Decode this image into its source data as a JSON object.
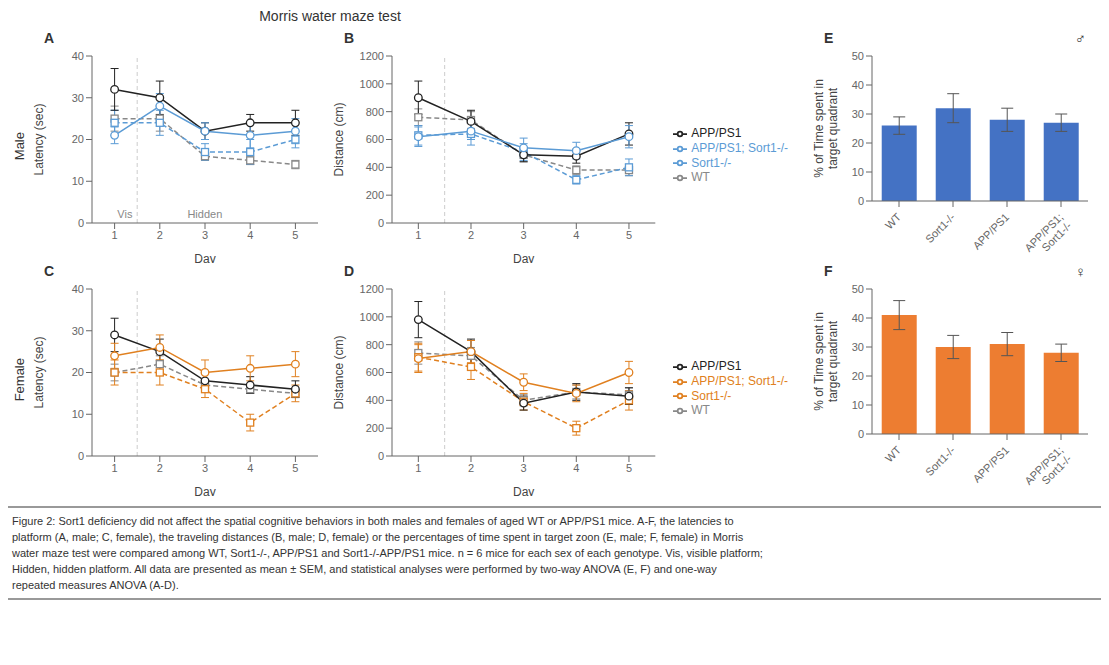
{
  "title": "Morris water maze test",
  "annotations": [
    "Male",
    "Female"
  ],
  "caption": [
    "Figure 2: Sort1 deficiency did not affect the spatial cognitive behaviors in both males and females of aged WT or APP/PS1 mice. A-F, the latencies to",
    "platform (A, male; C, female), the traveling distances (B, male; D, female) or the percentages of time spent in target zoon (E, male; F, female) in Morris",
    "water maze test were compared among WT, Sort1-/-, APP/PS1 and Sort1-/-APP/PS1 mice. n = 6 mice for each sex of each genotype. Vis, visible platform;",
    "Hidden, hidden platform. All data are presented as mean ± SEM, and statistical analyses were performed by two-way ANOVA (E, F) and one-way",
    "repeated measures ANOVA (A-D)."
  ],
  "chart_data": [
    {
      "type": "line",
      "title": "A",
      "xlabel": "Day",
      "ylabel": "Latency (sec)",
      "x": [
        1,
        2,
        3,
        4,
        5
      ],
      "xlim": [
        0.5,
        5.5
      ],
      "xticks": [
        1,
        2,
        3,
        4,
        5
      ],
      "ylim": [
        0,
        40
      ],
      "yticks": [
        0,
        10,
        20,
        30,
        40
      ],
      "vlines": [
        1.5
      ],
      "annotations": [
        {
          "text": "Vis",
          "x": 0.95
        },
        {
          "text": "Hidden",
          "x": 2.5
        }
      ],
      "series": [
        {
          "name": "WT",
          "color": "#888888",
          "marker": "square",
          "line_style": "dashed",
          "values": [
            25,
            25,
            16,
            15,
            14
          ],
          "errors": [
            3,
            3,
            1,
            1,
            1
          ]
        },
        {
          "name": "Sort1-/-",
          "color": "#5b9bd5",
          "marker": "square",
          "line_style": "dashed",
          "values": [
            24,
            24,
            17,
            17,
            20
          ],
          "errors": [
            3,
            3,
            2,
            3,
            2
          ]
        },
        {
          "name": "APP/PS1",
          "color": "#222222",
          "marker": "circle",
          "line_style": "solid",
          "values": [
            32,
            30,
            22,
            24,
            24
          ],
          "errors": [
            5,
            4,
            2,
            2,
            3
          ]
        },
        {
          "name": "APP/PS1; Sort1-/-",
          "color": "#5b9bd5",
          "marker": "circle",
          "line_style": "solid",
          "values": [
            21,
            28,
            22,
            21,
            22
          ],
          "errors": [
            2,
            3,
            2,
            3,
            3
          ]
        }
      ]
    },
    {
      "type": "line",
      "title": "B",
      "xlabel": "Day",
      "ylabel": "Distance (cm)",
      "x": [
        1,
        2,
        3,
        4,
        5
      ],
      "xlim": [
        0.5,
        5.5
      ],
      "xticks": [
        1,
        2,
        3,
        4,
        5
      ],
      "ylim": [
        0,
        1200
      ],
      "yticks": [
        0,
        200,
        400,
        600,
        800,
        1000,
        1200
      ],
      "vlines": [
        1.5
      ],
      "legend": "right",
      "series": [
        {
          "name": "WT",
          "color": "#888888",
          "marker": "square",
          "line_style": "dashed",
          "values": [
            760,
            740,
            490,
            380,
            380
          ],
          "errors": [
            60,
            60,
            50,
            30,
            40
          ]
        },
        {
          "name": "Sort1-/-",
          "color": "#5b9bd5",
          "marker": "square",
          "line_style": "dashed",
          "values": [
            630,
            640,
            510,
            310,
            400
          ],
          "errors": [
            70,
            80,
            60,
            30,
            60
          ]
        },
        {
          "name": "APP/PS1",
          "color": "#222222",
          "marker": "circle",
          "line_style": "solid",
          "values": [
            900,
            730,
            490,
            480,
            640
          ],
          "errors": [
            120,
            80,
            50,
            50,
            80
          ]
        },
        {
          "name": "APP/PS1; Sort1-/-",
          "color": "#5b9bd5",
          "marker": "circle",
          "line_style": "solid",
          "values": [
            620,
            660,
            540,
            520,
            620
          ],
          "errors": [
            70,
            60,
            70,
            60,
            80
          ]
        }
      ]
    },
    {
      "type": "line",
      "title": "C",
      "xlabel": "Day",
      "ylabel": "Latency (sec)",
      "x": [
        1,
        2,
        3,
        4,
        5
      ],
      "xlim": [
        0.5,
        5.5
      ],
      "xticks": [
        1,
        2,
        3,
        4,
        5
      ],
      "ylim": [
        0,
        40
      ],
      "yticks": [
        0,
        10,
        20,
        30,
        40
      ],
      "vlines": [
        1.5
      ],
      "series": [
        {
          "name": "WT",
          "color": "#888888",
          "marker": "square",
          "line_style": "dashed",
          "values": [
            20,
            22,
            17,
            16,
            15
          ],
          "errors": [
            2,
            2,
            1,
            1,
            1
          ]
        },
        {
          "name": "Sort1-/-",
          "color": "#e08020",
          "marker": "square",
          "line_style": "dashed",
          "values": [
            20,
            20,
            16,
            8,
            15
          ],
          "errors": [
            3,
            3,
            2,
            2,
            2
          ]
        },
        {
          "name": "APP/PS1",
          "color": "#222222",
          "marker": "circle",
          "line_style": "solid",
          "values": [
            29,
            25,
            18,
            17,
            16
          ],
          "errors": [
            4,
            3,
            2,
            2,
            2
          ]
        },
        {
          "name": "APP/PS1; Sort1-/-",
          "color": "#e08020",
          "marker": "circle",
          "line_style": "solid",
          "values": [
            24,
            26,
            20,
            21,
            22
          ],
          "errors": [
            3,
            3,
            3,
            3,
            3
          ]
        }
      ]
    },
    {
      "type": "line",
      "title": "D",
      "xlabel": "Day",
      "ylabel": "Distance (cm)",
      "x": [
        1,
        2,
        3,
        4,
        5
      ],
      "xlim": [
        0.5,
        5.5
      ],
      "xticks": [
        1,
        2,
        3,
        4,
        5
      ],
      "ylim": [
        0,
        1200
      ],
      "yticks": [
        0,
        200,
        400,
        600,
        800,
        1000,
        1200
      ],
      "vlines": [
        1.5
      ],
      "legend": "right",
      "series": [
        {
          "name": "WT",
          "color": "#888888",
          "marker": "square",
          "line_style": "dashed",
          "values": [
            740,
            720,
            400,
            460,
            440
          ],
          "errors": [
            80,
            60,
            40,
            50,
            50
          ]
        },
        {
          "name": "Sort1-/-",
          "color": "#e08020",
          "marker": "square",
          "line_style": "dashed",
          "values": [
            710,
            640,
            390,
            200,
            400
          ],
          "errors": [
            100,
            90,
            60,
            50,
            70
          ]
        },
        {
          "name": "APP/PS1",
          "color": "#222222",
          "marker": "circle",
          "line_style": "solid",
          "values": [
            980,
            750,
            380,
            460,
            430
          ],
          "errors": [
            130,
            90,
            50,
            60,
            60
          ]
        },
        {
          "name": "APP/PS1; Sort1-/-",
          "color": "#e08020",
          "marker": "circle",
          "line_style": "solid",
          "values": [
            700,
            750,
            530,
            450,
            600
          ],
          "errors": [
            100,
            80,
            60,
            60,
            80
          ]
        }
      ]
    },
    {
      "type": "bar",
      "title": "E",
      "ylabel": "% of Time spent in\ntarget quadrant",
      "categories": [
        "WT",
        "Sort1-/-",
        "APP/PS1",
        "APP/PS1;\nSort1-/-"
      ],
      "values": [
        26,
        32,
        28,
        27
      ],
      "errors": [
        3,
        5,
        4,
        3
      ],
      "color": "#4472c4",
      "ylim": [
        0,
        50
      ],
      "yticks": [
        0,
        10,
        20,
        30,
        40,
        50
      ],
      "annotations": [
        {
          "text": "♂"
        }
      ]
    },
    {
      "type": "bar",
      "title": "F",
      "ylabel": "% of Time spent in\ntarget quadrant",
      "categories": [
        "WT",
        "Sort1-/-",
        "APP/PS1",
        "APP/PS1;\nSort1-/-"
      ],
      "values": [
        41,
        30,
        31,
        28
      ],
      "errors": [
        5,
        4,
        4,
        3
      ],
      "color": "#ed7d31",
      "ylim": [
        0,
        50
      ],
      "yticks": [
        0,
        10,
        20,
        30,
        40,
        50
      ],
      "annotations": [
        {
          "text": "♀"
        }
      ]
    }
  ]
}
